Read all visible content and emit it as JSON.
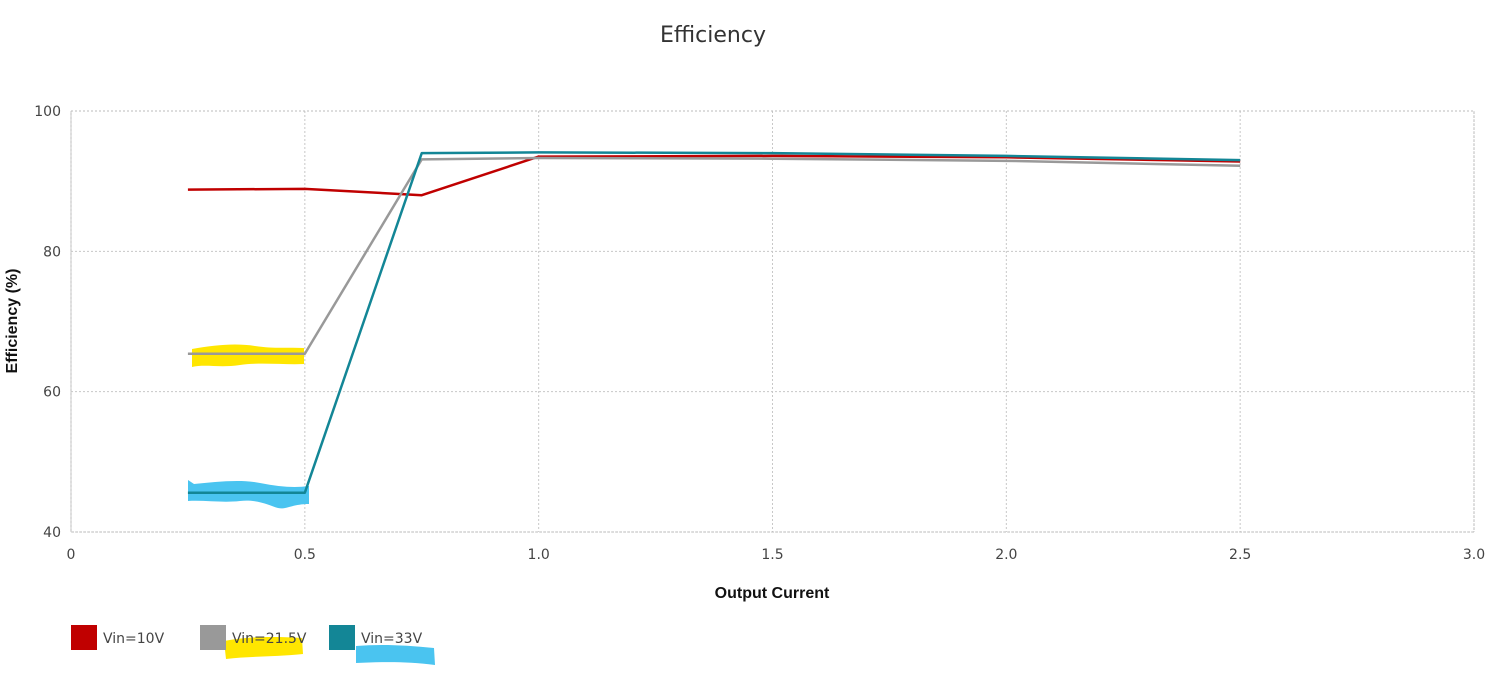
{
  "chart_data": {
    "type": "line",
    "title": "Efficiency",
    "xlabel": "Output Current",
    "ylabel": "Efficiency (%)",
    "xlim": [
      0,
      3.0
    ],
    "ylim": [
      40,
      100
    ],
    "x_ticks": [
      {
        "value": 0,
        "label": "0"
      },
      {
        "value": 0.5,
        "label": "0.5"
      },
      {
        "value": 1.0,
        "label": "1.0"
      },
      {
        "value": 1.5,
        "label": "1.5"
      },
      {
        "value": 2.0,
        "label": "2.0"
      },
      {
        "value": 2.5,
        "label": "2.5"
      },
      {
        "value": 3.0,
        "label": "3.0"
      }
    ],
    "y_ticks": [
      {
        "value": 40,
        "label": "40"
      },
      {
        "value": 60,
        "label": "60"
      },
      {
        "value": 80,
        "label": "80"
      },
      {
        "value": 100,
        "label": "100"
      }
    ],
    "grid": true,
    "legend_position": "bottom-left",
    "series": [
      {
        "name": "Vin=10V",
        "color": "#c00000",
        "points": [
          [
            0.25,
            88.8
          ],
          [
            0.5,
            88.9
          ],
          [
            0.75,
            88.0
          ],
          [
            1.0,
            93.5
          ],
          [
            1.5,
            93.6
          ],
          [
            2.0,
            93.4
          ],
          [
            2.5,
            92.8
          ]
        ]
      },
      {
        "name": "Vin=21.5V",
        "color": "#999999",
        "points": [
          [
            0.25,
            65.4
          ],
          [
            0.5,
            65.4
          ],
          [
            0.75,
            93.1
          ],
          [
            1.0,
            93.3
          ],
          [
            1.5,
            93.2
          ],
          [
            2.0,
            92.9
          ],
          [
            2.5,
            92.2
          ]
        ]
      },
      {
        "name": "Vin=33V",
        "color": "#138696",
        "points": [
          [
            0.25,
            45.6
          ],
          [
            0.5,
            45.6
          ],
          [
            0.75,
            94.0
          ],
          [
            1.0,
            94.1
          ],
          [
            1.5,
            94.0
          ],
          [
            2.0,
            93.6
          ],
          [
            2.5,
            93.0
          ]
        ]
      }
    ]
  }
}
